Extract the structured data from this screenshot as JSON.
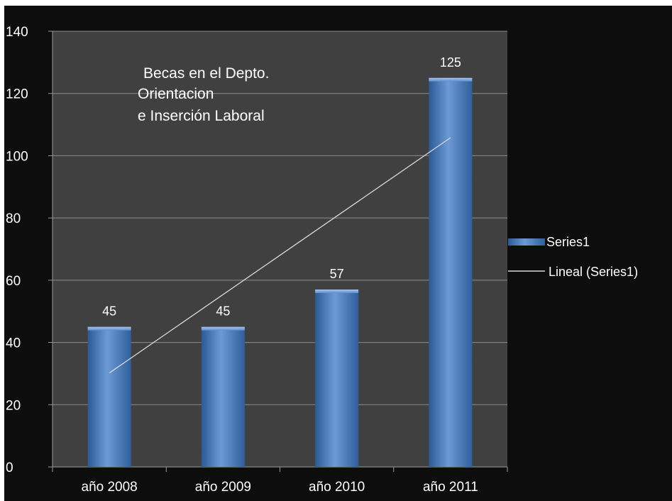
{
  "chart_data": {
    "type": "bar",
    "title_lines": [
      "Becas en el Depto.",
      "Orientacion",
      "e Inserción Laboral"
    ],
    "categories": [
      "año 2008",
      "año 2009",
      "año 2010",
      "año 2011"
    ],
    "series": [
      {
        "name": "Series1",
        "values": [
          45,
          45,
          57,
          125
        ],
        "color": "#4f81bd"
      }
    ],
    "trendline": {
      "name": "Lineal (Series1)",
      "type": "linear",
      "color": "#d9d9d9"
    },
    "ylim": [
      0,
      140
    ],
    "yticks": [
      0,
      20,
      40,
      60,
      80,
      100,
      120,
      140
    ],
    "grid": true,
    "legend": "right",
    "colors": {
      "plot_bg": "#404040",
      "frame_bg": "#0d0d0d",
      "gridline": "#8c8c8c",
      "text": "#ffffff"
    }
  }
}
